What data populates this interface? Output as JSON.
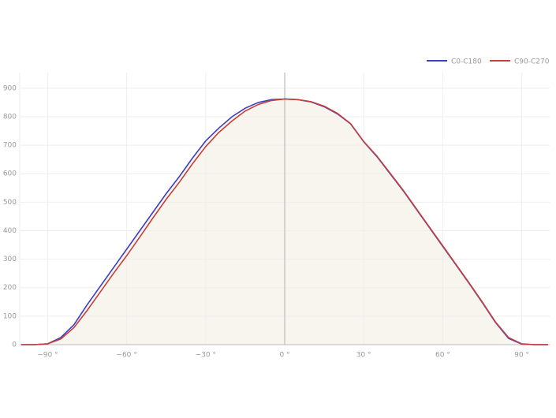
{
  "chart_data": {
    "type": "line",
    "x": [
      -100,
      -95,
      -90,
      -85,
      -80,
      -75,
      -70,
      -65,
      -60,
      -55,
      -50,
      -45,
      -40,
      -35,
      -30,
      -25,
      -20,
      -15,
      -10,
      -5,
      0,
      5,
      10,
      15,
      20,
      25,
      30,
      35,
      40,
      45,
      50,
      55,
      60,
      65,
      70,
      75,
      80,
      85,
      90,
      95,
      100
    ],
    "series": [
      {
        "name": "C0-C180",
        "color": "#3b3fc6",
        "values": [
          0,
          0,
          3,
          25,
          70,
          140,
          205,
          270,
          335,
          400,
          465,
          530,
          590,
          655,
          715,
          760,
          800,
          830,
          850,
          860,
          862,
          860,
          852,
          835,
          810,
          775,
          712,
          660,
          600,
          540,
          475,
          410,
          345,
          280,
          215,
          148,
          78,
          22,
          2,
          0,
          0
        ]
      },
      {
        "name": "C90-C270",
        "color": "#c6403a",
        "values": [
          0,
          0,
          3,
          20,
          60,
          120,
          185,
          250,
          312,
          378,
          445,
          510,
          570,
          635,
          695,
          745,
          785,
          820,
          843,
          857,
          862,
          860,
          853,
          837,
          812,
          776,
          713,
          662,
          602,
          542,
          477,
          412,
          347,
          282,
          217,
          150,
          80,
          25,
          3,
          0,
          0
        ]
      }
    ],
    "area_color": "#f8f5ee",
    "xlim": [
      -100,
      100
    ],
    "xticks": [
      {
        "value": -90,
        "label": "−90 °"
      },
      {
        "value": -60,
        "label": "−60 °"
      },
      {
        "value": -30,
        "label": "−30 °"
      },
      {
        "value": 0,
        "label": "0 °"
      },
      {
        "value": 30,
        "label": "30 °"
      },
      {
        "value": 60,
        "label": "60 °"
      },
      {
        "value": 90,
        "label": "90 °"
      }
    ],
    "ylim": [
      0,
      955
    ],
    "yticks": [
      0,
      100,
      200,
      300,
      400,
      500,
      600,
      700,
      800,
      900
    ],
    "grid": true
  }
}
